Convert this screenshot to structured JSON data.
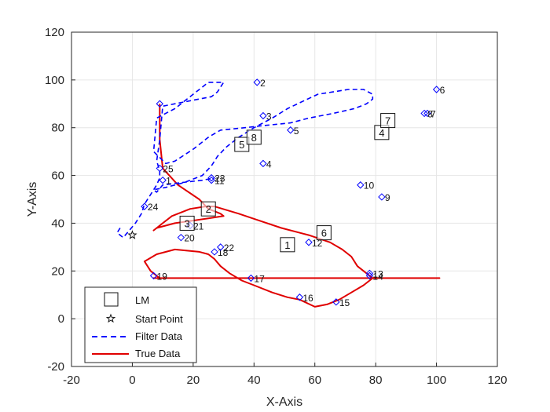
{
  "chart_data": {
    "type": "line",
    "xlabel": "X-Axis",
    "ylabel": "Y-Axis",
    "xlim": [
      -20,
      120
    ],
    "ylim": [
      -20,
      120
    ],
    "xticks": [
      -20,
      0,
      20,
      40,
      60,
      80,
      100,
      120
    ],
    "yticks": [
      -20,
      0,
      20,
      40,
      60,
      80,
      100,
      120
    ],
    "grid": true,
    "legend_position": "bottom-left",
    "legend": [
      {
        "label": "LM",
        "marker": "square"
      },
      {
        "label": "Start Point",
        "marker": "star"
      },
      {
        "label": "Filter Data",
        "style": "dashed",
        "color": "#0000ff"
      },
      {
        "label": "True Data",
        "style": "solid",
        "color": "#e00000"
      }
    ],
    "start_point": {
      "x": 0,
      "y": 35
    },
    "landmarks": [
      {
        "id": "1",
        "x": 51,
        "y": 31
      },
      {
        "id": "2",
        "x": 25,
        "y": 46
      },
      {
        "id": "3",
        "x": 18,
        "y": 40
      },
      {
        "id": "4",
        "x": 82,
        "y": 78
      },
      {
        "id": "5",
        "x": 36,
        "y": 73
      },
      {
        "id": "6",
        "x": 63,
        "y": 36
      },
      {
        "id": "7",
        "x": 84,
        "y": 83
      },
      {
        "id": "8",
        "x": 40,
        "y": 76
      }
    ],
    "waypoints": [
      {
        "id": "1",
        "x": 10,
        "y": 58
      },
      {
        "id": "2",
        "x": 41,
        "y": 99
      },
      {
        "id": "3",
        "x": 43,
        "y": 85
      },
      {
        "id": "4",
        "x": 43,
        "y": 65
      },
      {
        "id": "5",
        "x": 52,
        "y": 79
      },
      {
        "id": "6",
        "x": 100,
        "y": 96
      },
      {
        "id": "7",
        "x": 97,
        "y": 86
      },
      {
        "id": "8",
        "x": 96,
        "y": 86
      },
      {
        "id": "9",
        "x": 82,
        "y": 51
      },
      {
        "id": "10",
        "x": 75,
        "y": 56
      },
      {
        "id": "11",
        "x": 26,
        "y": 58
      },
      {
        "id": "12",
        "x": 58,
        "y": 32
      },
      {
        "id": "13",
        "x": 78,
        "y": 19
      },
      {
        "id": "14",
        "x": 78,
        "y": 18
      },
      {
        "id": "15",
        "x": 67,
        "y": 7
      },
      {
        "id": "16",
        "x": 55,
        "y": 9
      },
      {
        "id": "17",
        "x": 39,
        "y": 17
      },
      {
        "id": "18",
        "x": 27,
        "y": 28
      },
      {
        "id": "19",
        "x": 7,
        "y": 18
      },
      {
        "id": "20",
        "x": 16,
        "y": 34
      },
      {
        "id": "21",
        "x": 19,
        "y": 39
      },
      {
        "id": "22",
        "x": 29,
        "y": 30
      },
      {
        "id": "23",
        "x": 26,
        "y": 59
      },
      {
        "id": "24",
        "x": 4,
        "y": 47
      },
      {
        "id": "25",
        "x": 9,
        "y": 63
      },
      {
        "id": "",
        "x": 9,
        "y": 90
      }
    ],
    "series": [
      {
        "name": "True Data",
        "color": "#e00000",
        "style": "solid",
        "x": [
          9,
          9,
          10,
          15,
          22,
          25,
          27,
          29,
          30,
          25,
          14,
          8,
          7,
          10,
          13,
          19,
          24,
          27,
          35,
          42,
          49,
          58,
          65,
          69,
          72,
          74,
          77,
          78,
          79,
          76,
          72,
          68,
          64,
          60,
          55,
          51,
          46,
          40,
          36,
          32,
          29,
          27,
          25,
          22,
          14,
          8,
          4,
          6,
          8,
          9,
          9,
          9,
          20,
          30,
          40,
          41,
          42,
          43,
          43,
          42,
          43,
          45,
          47,
          52,
          60,
          70,
          80,
          90,
          100,
          101,
          100,
          98,
          96,
          94,
          92,
          89,
          86,
          84,
          82,
          80,
          77,
          75,
          60,
          40,
          26,
          18,
          10,
          7,
          8,
          14,
          24,
          33,
          42,
          50,
          58,
          66,
          72
        ],
        "y": [
          90,
          75,
          63,
          56,
          50,
          46,
          45,
          44,
          43,
          42,
          40,
          38,
          37,
          40,
          43,
          46,
          47,
          47,
          44,
          41,
          38,
          35,
          32,
          29,
          26,
          22,
          19,
          18,
          17,
          14,
          11,
          8,
          6,
          5,
          8,
          9,
          11,
          14,
          16,
          19,
          22,
          25,
          27,
          28,
          29,
          27,
          24,
          20,
          18,
          17,
          17,
          17,
          17,
          17,
          17,
          17,
          17,
          17,
          17,
          17,
          17,
          17,
          17,
          17,
          17,
          17,
          17,
          17,
          17,
          17,
          17,
          17,
          17,
          17,
          17,
          17,
          17,
          17,
          17,
          17,
          17,
          17,
          17,
          17,
          17,
          17,
          17,
          17,
          17,
          17,
          17,
          17,
          17,
          17,
          17,
          17,
          17
        ]
      },
      {
        "name": "Filter Data",
        "color": "#0000ff",
        "style": "dashed",
        "x": [
          -4,
          -5,
          -3,
          -1,
          1,
          3,
          4,
          6,
          8,
          9,
          9,
          8,
          9,
          10,
          18,
          26,
          28,
          29,
          30,
          25,
          14,
          8,
          7,
          11,
          14,
          20,
          25,
          29,
          37,
          44,
          52,
          58,
          66,
          73,
          77,
          79,
          79,
          76,
          71,
          66,
          61,
          56,
          51,
          46,
          40,
          35,
          31,
          28,
          26,
          23,
          17,
          11,
          7,
          8,
          10,
          16,
          23,
          27
        ],
        "y": [
          38,
          36,
          34,
          37,
          40,
          44,
          48,
          52,
          56,
          59,
          62,
          66,
          75,
          89,
          91,
          93,
          95,
          97,
          99,
          99,
          88,
          84,
          70,
          65,
          66,
          71,
          76,
          79,
          80,
          81,
          82,
          84,
          86,
          88,
          90,
          92,
          94,
          96,
          96,
          95,
          94,
          91,
          88,
          84,
          80,
          76,
          72,
          68,
          64,
          60,
          57,
          55,
          54,
          53,
          56,
          57,
          58,
          59
        ]
      }
    ]
  }
}
